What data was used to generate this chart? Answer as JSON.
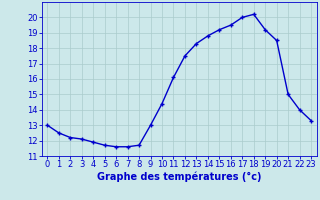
{
  "x": [
    0,
    1,
    2,
    3,
    4,
    5,
    6,
    7,
    8,
    9,
    10,
    11,
    12,
    13,
    14,
    15,
    16,
    17,
    18,
    19,
    20,
    21,
    22,
    23
  ],
  "y": [
    13.0,
    12.5,
    12.2,
    12.1,
    11.9,
    11.7,
    11.6,
    11.6,
    11.7,
    13.0,
    14.4,
    16.1,
    17.5,
    18.3,
    18.8,
    19.2,
    19.5,
    20.0,
    20.2,
    19.2,
    18.5,
    15.0,
    14.0,
    13.3
  ],
  "line_color": "#0000cc",
  "marker": "+",
  "marker_size": 3.5,
  "marker_lw": 1.0,
  "bg_color": "#cce8ea",
  "grid_color": "#aacccc",
  "xlabel": "Graphe des températures (°c)",
  "xlabel_color": "#0000cc",
  "xlabel_fontsize": 7.0,
  "tick_color": "#0000cc",
  "tick_fontsize": 6.0,
  "ylim": [
    11,
    21
  ],
  "xlim": [
    -0.5,
    23.5
  ],
  "yticks": [
    11,
    12,
    13,
    14,
    15,
    16,
    17,
    18,
    19,
    20
  ],
  "xticks": [
    0,
    1,
    2,
    3,
    4,
    5,
    6,
    7,
    8,
    9,
    10,
    11,
    12,
    13,
    14,
    15,
    16,
    17,
    18,
    19,
    20,
    21,
    22,
    23
  ]
}
